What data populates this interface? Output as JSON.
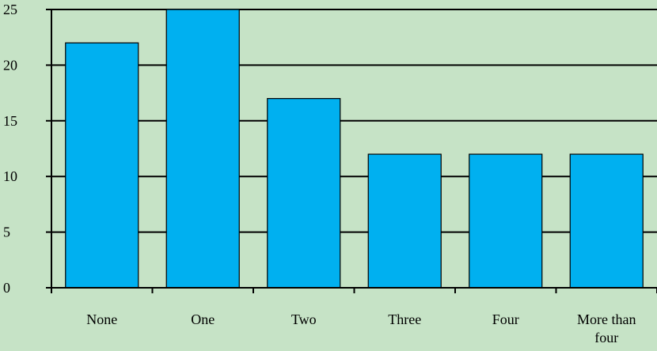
{
  "chart_data": {
    "type": "bar",
    "categories": [
      [
        "None"
      ],
      [
        "One"
      ],
      [
        "Two"
      ],
      [
        "Three"
      ],
      [
        "Four"
      ],
      [
        "More than",
        "four"
      ]
    ],
    "values": [
      22,
      25,
      17,
      12,
      12,
      12
    ],
    "ylim": [
      0,
      25
    ],
    "yticks": [
      0,
      5,
      10,
      15,
      20,
      25
    ],
    "grid": true,
    "colors": {
      "background": "#c6e3c6",
      "bar": "#00b0f0",
      "bar_border": "#000000",
      "gridline": "#000000"
    }
  }
}
